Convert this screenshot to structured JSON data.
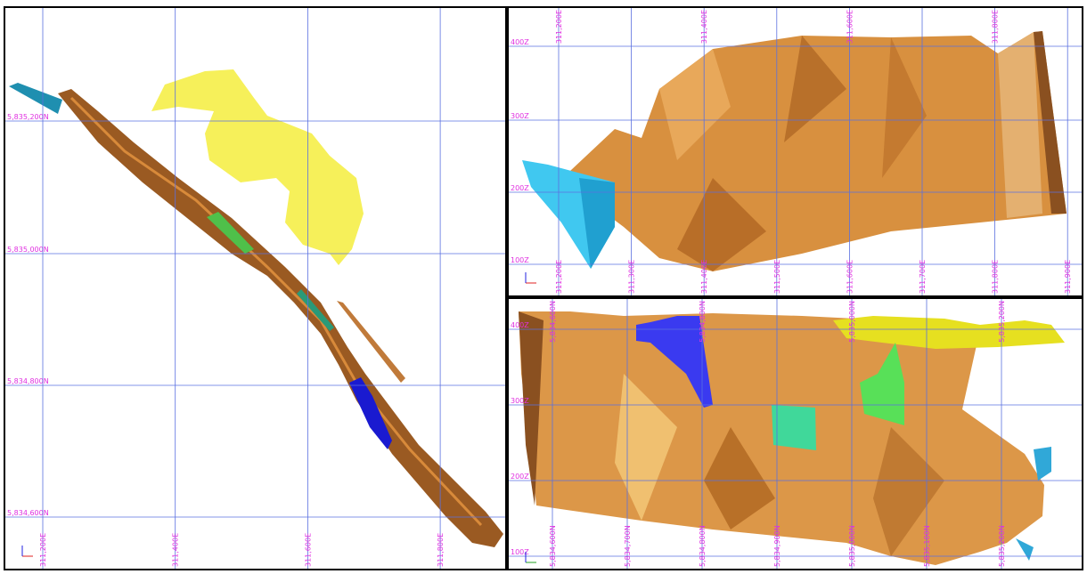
{
  "panels": [
    {
      "h_labels": [
        "5,835,200N",
        "5,835,000N",
        "5,834,800N",
        "5,834,600N"
      ],
      "v_bottom_labels": [
        "311,200E",
        "311,400E",
        "311,600E",
        "311,800E"
      ]
    },
    {
      "h_labels": [
        "400Z",
        "300Z",
        "200Z",
        "100Z"
      ],
      "v_top_labels": [
        "311,200E",
        "311,400E",
        "311,600E",
        "311,800E"
      ],
      "v_bottom_labels": [
        "311,200E",
        "311,300E",
        "311,400E",
        "311,500E",
        "311,600E",
        "311,700E",
        "311,800E",
        "311,900E"
      ]
    },
    {
      "h_labels": [
        "400Z",
        "300Z",
        "200Z",
        "100Z"
      ],
      "v_top_labels": [
        "5,834,600N",
        "5,834,800N",
        "5,835,000N",
        "5,835,200N"
      ],
      "v_bottom_labels": [
        "5,834,600N",
        "5,834,700N",
        "5,834,800N",
        "5,834,900N",
        "5,835,000N",
        "5,835,100N",
        "5,835,200N"
      ]
    }
  ]
}
